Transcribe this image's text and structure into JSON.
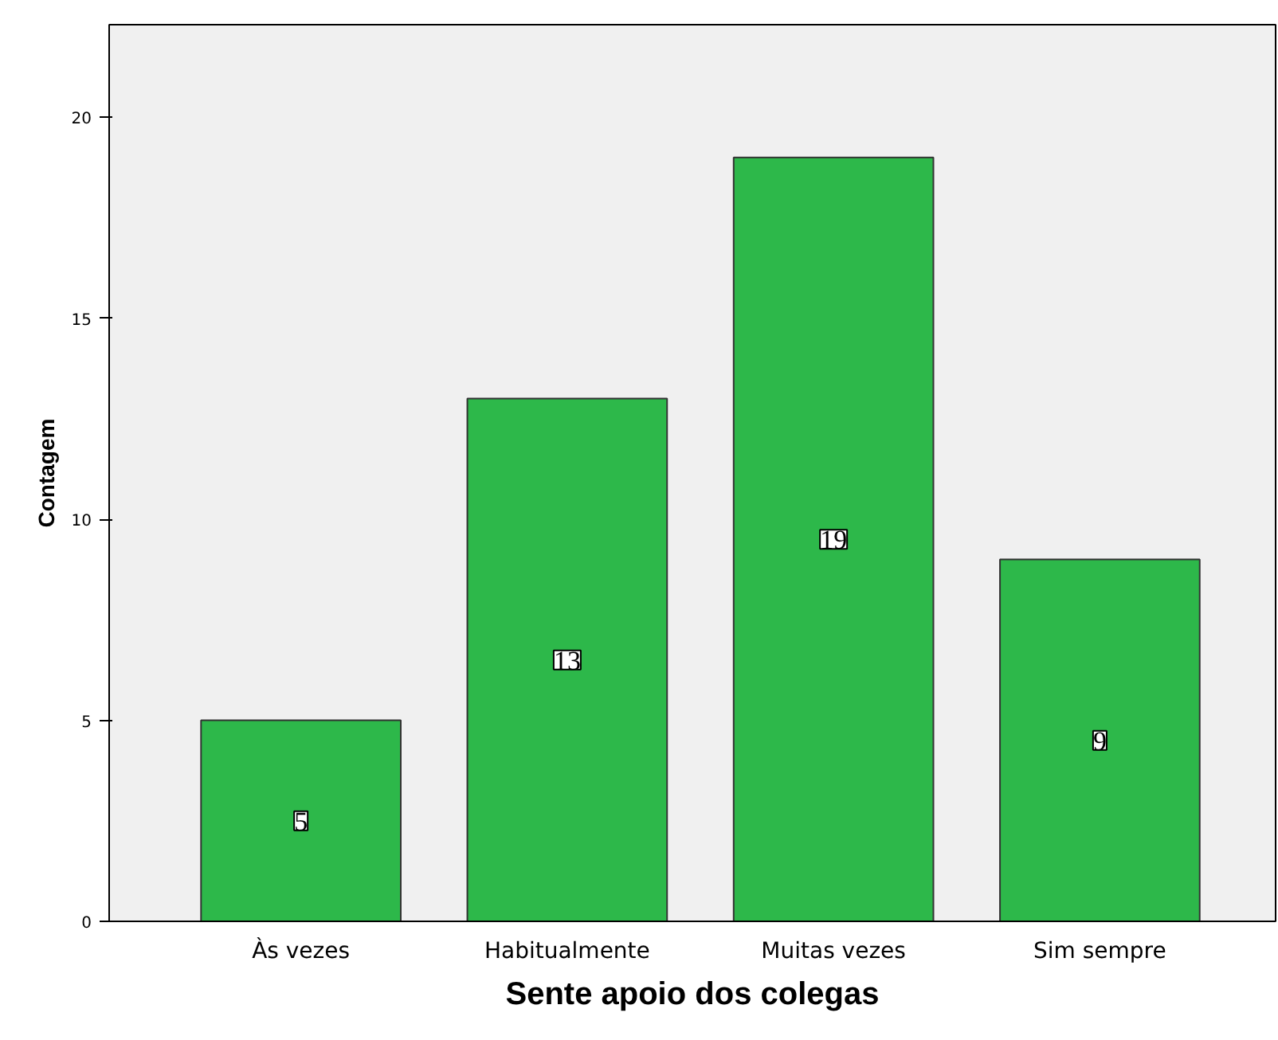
{
  "chart_data": {
    "type": "bar",
    "xlabel": "Sente apoio dos colegas",
    "ylabel": "Contagem",
    "categories": [
      "Às vezes",
      "Habitualmente",
      "Muitas vezes",
      "Sim sempre"
    ],
    "values": [
      5,
      13,
      19,
      9
    ],
    "color": "#2db84a",
    "ylim": [
      0,
      22.3
    ],
    "yticks": [
      0,
      5,
      10,
      15,
      20
    ],
    "grid": false,
    "data_labels": true
  }
}
